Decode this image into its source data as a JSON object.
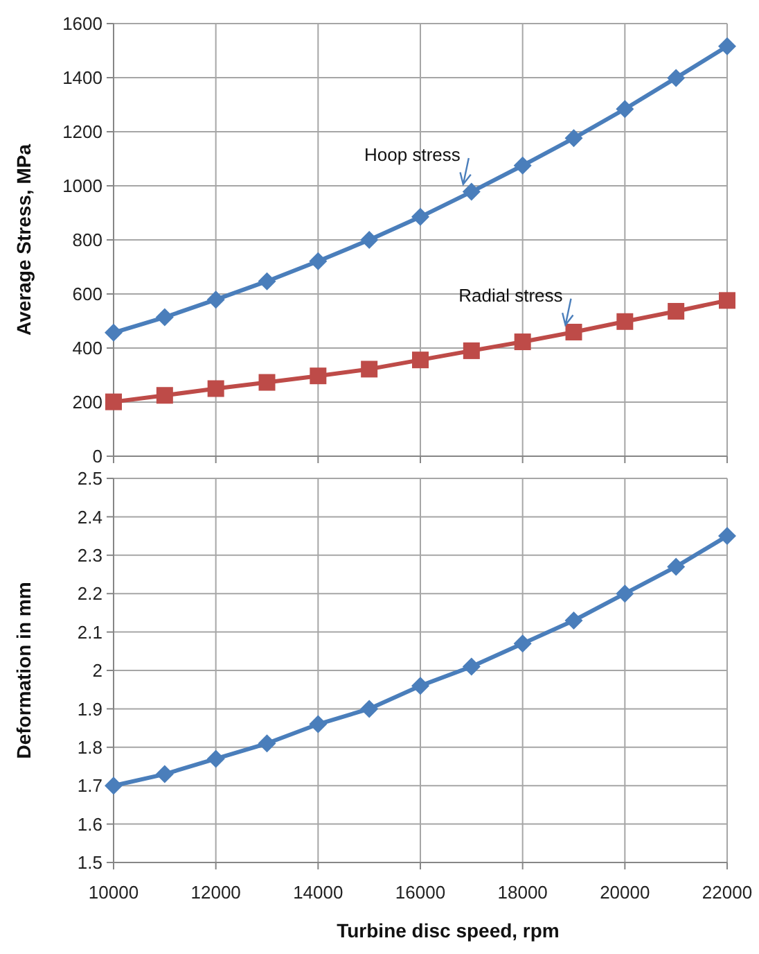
{
  "chart_data": [
    {
      "type": "line",
      "ylabel": "Average Stress, MPa",
      "x": [
        10000,
        11000,
        12000,
        13000,
        14000,
        15000,
        16000,
        17000,
        18000,
        19000,
        20000,
        21000,
        22000
      ],
      "xlim": [
        10000,
        22000
      ],
      "xticks": [
        10000,
        12000,
        14000,
        16000,
        18000,
        20000,
        22000
      ],
      "ylim": [
        0,
        1600
      ],
      "yticks": [
        0,
        200,
        400,
        600,
        800,
        1000,
        1200,
        1400,
        1600
      ],
      "grid": true,
      "tick_labels": "y",
      "line_style": "solid",
      "series": [
        {
          "color": "#4a7ebb",
          "marker": "diamond",
          "values": [
            457,
            514,
            579,
            647,
            721,
            800,
            885,
            978,
            1075,
            1176,
            1284,
            1399,
            1516
          ]
        },
        {
          "color": "#be4b48",
          "marker": "square",
          "values": [
            201,
            225,
            250,
            273,
            297,
            322,
            356,
            390,
            423,
            459,
            498,
            536,
            576
          ]
        }
      ],
      "annotations": [
        {
          "text": "Hoop stress",
          "x": 17000,
          "y": 990
        },
        {
          "text": "Radial stress",
          "x": 19000,
          "y": 470
        }
      ]
    },
    {
      "type": "line",
      "xlabel": "Turbine disc speed, rpm",
      "ylabel": "Deformation in mm",
      "x": [
        10000,
        11000,
        12000,
        13000,
        14000,
        15000,
        16000,
        17000,
        18000,
        19000,
        20000,
        21000,
        22000
      ],
      "xlim": [
        10000,
        22000
      ],
      "xticks": [
        10000,
        12000,
        14000,
        16000,
        18000,
        20000,
        22000
      ],
      "ylim": [
        1.5,
        2.5
      ],
      "yticks": [
        1.5,
        1.6,
        1.7,
        1.8,
        1.9,
        2,
        2.1,
        2.2,
        2.3,
        2.4,
        2.5
      ],
      "grid": true,
      "line_style": "solid",
      "series": [
        {
          "color": "#4a7ebb",
          "marker": "diamond",
          "values": [
            1.7,
            1.73,
            1.77,
            1.81,
            1.86,
            1.9,
            1.96,
            2.01,
            2.07,
            2.13,
            2.2,
            2.27,
            2.35
          ]
        }
      ]
    }
  ]
}
